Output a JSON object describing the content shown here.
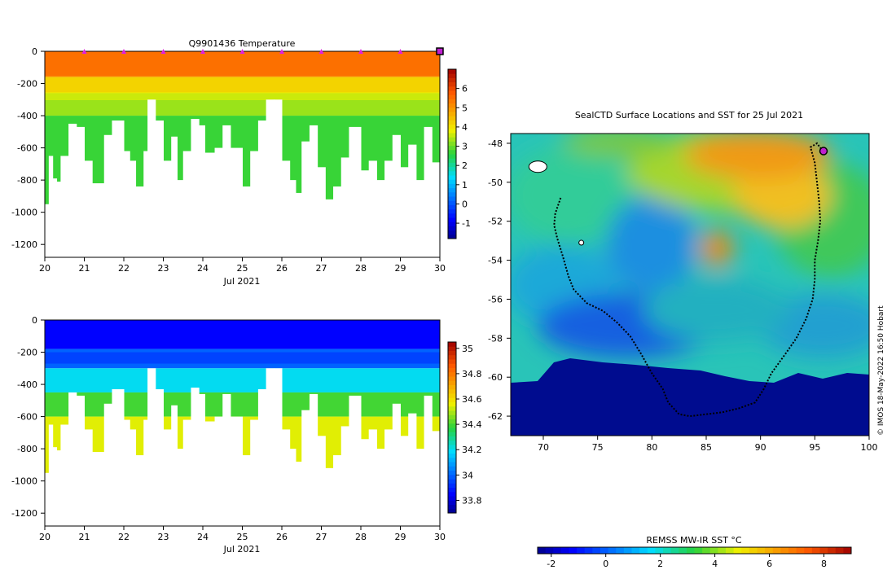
{
  "chart_data": [
    {
      "type": "heatmap",
      "panel": "temperature-profile",
      "title": "Q9901436  Temperature",
      "xlabel": "Jul 2021",
      "ylabel": "",
      "xlim": [
        20,
        30
      ],
      "ylim": [
        -1280,
        0
      ],
      "x_ticks": [
        "20",
        "21",
        "22",
        "23",
        "24",
        "25",
        "26",
        "27",
        "28",
        "29",
        "30"
      ],
      "y_ticks": [
        "0",
        "-200",
        "-400",
        "-600",
        "-800",
        "-1000",
        "-1200"
      ],
      "colorbar": {
        "range": [
          -1.8,
          7
        ],
        "ticks": [
          "-1",
          "0",
          "1",
          "2",
          "3",
          "4",
          "5",
          "6"
        ]
      },
      "surface_markers_day": [
        21,
        22,
        23,
        24,
        25,
        26,
        27,
        28,
        29,
        30
      ],
      "max_depth_profile_m": [
        [
          20.1,
          -650
        ],
        [
          20.2,
          -790
        ],
        [
          20.3,
          -810
        ],
        [
          20.4,
          -650
        ],
        [
          20.6,
          -450
        ],
        [
          20.8,
          -470
        ],
        [
          21.0,
          -680
        ],
        [
          21.2,
          -820
        ],
        [
          21.5,
          -520
        ],
        [
          21.7,
          -430
        ],
        [
          22.0,
          -620
        ],
        [
          22.15,
          -680
        ],
        [
          22.3,
          -840
        ],
        [
          22.5,
          -620
        ],
        [
          22.6,
          -300
        ],
        [
          22.8,
          -430
        ],
        [
          23.0,
          -680
        ],
        [
          23.2,
          -530
        ],
        [
          23.35,
          -800
        ],
        [
          23.5,
          -620
        ],
        [
          23.7,
          -420
        ],
        [
          23.9,
          -460
        ],
        [
          24.05,
          -630
        ],
        [
          24.3,
          -600
        ],
        [
          24.5,
          -460
        ],
        [
          24.7,
          -600
        ],
        [
          25.0,
          -840
        ],
        [
          25.2,
          -620
        ],
        [
          25.4,
          -430
        ],
        [
          25.6,
          -300
        ],
        [
          25.8,
          -300
        ],
        [
          26.0,
          -680
        ],
        [
          26.2,
          -800
        ],
        [
          26.35,
          -880
        ],
        [
          26.5,
          -560
        ],
        [
          26.7,
          -460
        ],
        [
          26.9,
          -720
        ],
        [
          27.1,
          -920
        ],
        [
          27.3,
          -840
        ],
        [
          27.5,
          -660
        ],
        [
          27.7,
          -470
        ],
        [
          28.0,
          -740
        ],
        [
          28.2,
          -680
        ],
        [
          28.4,
          -800
        ],
        [
          28.6,
          -680
        ],
        [
          28.8,
          -520
        ],
        [
          29.0,
          -720
        ],
        [
          29.2,
          -580
        ],
        [
          29.4,
          -800
        ],
        [
          29.6,
          -470
        ],
        [
          29.8,
          -690
        ],
        [
          30.0,
          -690
        ]
      ],
      "layers": [
        {
          "depth_range": [
            0,
            -160
          ],
          "value": 5.2
        },
        {
          "depth_range": [
            -160,
            -260
          ],
          "value": 4.2
        },
        {
          "depth_range": [
            -260,
            -400
          ],
          "value": 3.3
        },
        {
          "depth_range": [
            -400,
            -950
          ],
          "value": 2.7
        }
      ]
    },
    {
      "type": "heatmap",
      "panel": "salinity-profile",
      "title": "",
      "xlabel": "Jul 2021",
      "ylabel": "",
      "xlim": [
        20,
        30
      ],
      "ylim": [
        -1280,
        0
      ],
      "x_ticks": [
        "20",
        "21",
        "22",
        "23",
        "24",
        "25",
        "26",
        "27",
        "28",
        "29",
        "30"
      ],
      "y_ticks": [
        "0",
        "-200",
        "-400",
        "-600",
        "-800",
        "-1000",
        "-1200"
      ],
      "colorbar": {
        "range": [
          33.7,
          35.05
        ],
        "ticks": [
          "33.8",
          "34",
          "34.2",
          "34.4",
          "34.6",
          "34.8",
          "35"
        ]
      },
      "layers": [
        {
          "depth_range": [
            0,
            -180
          ],
          "value": 33.85
        },
        {
          "depth_range": [
            -180,
            -300
          ],
          "value": 34.0
        },
        {
          "depth_range": [
            -300,
            -450
          ],
          "value": 34.2
        },
        {
          "depth_range": [
            -450,
            -600
          ],
          "value": 34.4
        },
        {
          "depth_range": [
            -600,
            -950
          ],
          "value": 34.55
        }
      ]
    },
    {
      "type": "heatmap",
      "panel": "sst-map",
      "title": "SealCTD Surface Locations and SST for 25 Jul 2021",
      "xlabel": "",
      "ylabel": "",
      "xlim": [
        67,
        100
      ],
      "ylim": [
        -63,
        -47.5
      ],
      "x_ticks": [
        "70",
        "75",
        "80",
        "85",
        "90",
        "95",
        "100"
      ],
      "y_ticks": [
        "-48",
        "-50",
        "-52",
        "-54",
        "-56",
        "-58",
        "-60",
        "-62"
      ],
      "colorbar": {
        "label": "REMSS MW-IR SST °C",
        "range": [
          -2.5,
          9
        ],
        "ticks": [
          "-2",
          "0",
          "2",
          "4",
          "6",
          "8"
        ]
      },
      "track_lon_lat": [
        [
          71.6,
          -50.8
        ],
        [
          71.1,
          -51.6
        ],
        [
          71.0,
          -52.2
        ],
        [
          71.3,
          -52.9
        ],
        [
          71.8,
          -53.8
        ],
        [
          72.3,
          -54.8
        ],
        [
          72.8,
          -55.5
        ],
        [
          74.0,
          -56.2
        ],
        [
          75.5,
          -56.6
        ],
        [
          76.8,
          -57.2
        ],
        [
          78.0,
          -57.9
        ],
        [
          79.0,
          -58.8
        ],
        [
          80.0,
          -59.8
        ],
        [
          81.0,
          -60.6
        ],
        [
          81.5,
          -61.3
        ],
        [
          82.5,
          -61.9
        ],
        [
          83.5,
          -62.0
        ],
        [
          85.0,
          -61.9
        ],
        [
          86.5,
          -61.8
        ],
        [
          88.0,
          -61.6
        ],
        [
          89.5,
          -61.3
        ],
        [
          90.3,
          -60.6
        ],
        [
          91.0,
          -59.8
        ],
        [
          92.3,
          -58.8
        ],
        [
          93.3,
          -58.0
        ],
        [
          94.2,
          -57.0
        ],
        [
          94.8,
          -56.0
        ],
        [
          95.0,
          -55.0
        ],
        [
          95.0,
          -54.0
        ],
        [
          95.3,
          -53.0
        ],
        [
          95.5,
          -52.0
        ],
        [
          95.4,
          -51.0
        ],
        [
          95.2,
          -50.0
        ],
        [
          95.0,
          -49.0
        ],
        [
          94.6,
          -48.2
        ],
        [
          95.2,
          -48.0
        ],
        [
          95.6,
          -48.3
        ]
      ],
      "current_position_lon_lat": [
        95.8,
        -48.4
      ],
      "islands_lon_lat": [
        [
          69.5,
          -49.2
        ],
        [
          73.5,
          -53.1
        ]
      ]
    }
  ],
  "credit": "© IMOS 18-May-2022 16:50 Hobart"
}
